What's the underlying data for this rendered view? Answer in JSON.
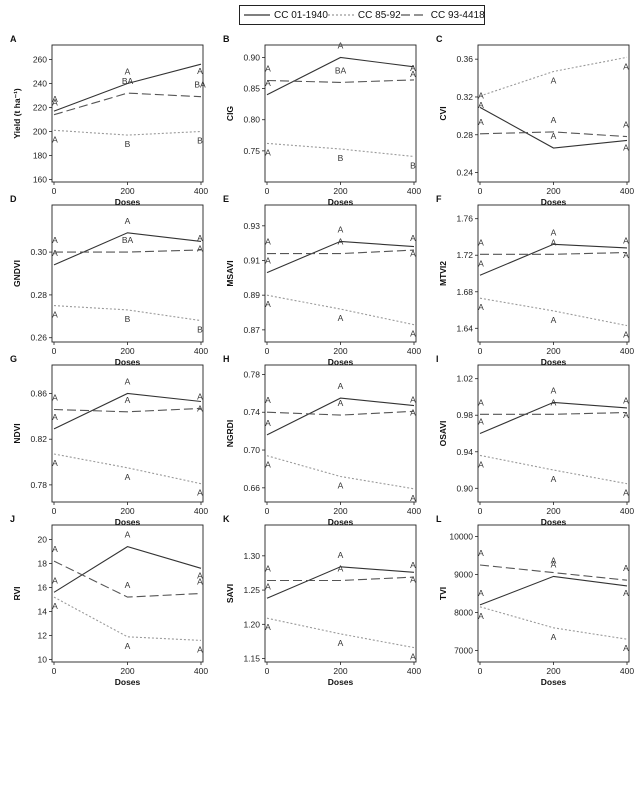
{
  "legend": [
    {
      "name": "CC 01-1940",
      "color": "#333333",
      "dash": "none"
    },
    {
      "name": "CC 85-92",
      "color": "#9a9a9a",
      "dash": "2,2"
    },
    {
      "name": "CC 93-4418",
      "color": "#555555",
      "dash": "9,4"
    }
  ],
  "chart_data": [
    {
      "type": "line",
      "letter": "A",
      "ylabel": "Yield (t ha⁻¹)",
      "xlabel": "Doses",
      "x": [
        0,
        200,
        400
      ],
      "xticks": [
        "0",
        "200",
        "400"
      ],
      "ylim": [
        158,
        272
      ],
      "yticks": [
        "160",
        "180",
        "200",
        "220",
        "240",
        "260"
      ],
      "series": [
        {
          "name": "CC 01-1940",
          "values": [
            217,
            240,
            256
          ],
          "labels": [
            "A",
            "A",
            "A"
          ]
        },
        {
          "name": "CC 85-92",
          "values": [
            201,
            197,
            200
          ],
          "labels": [
            "A",
            "B",
            "B"
          ]
        },
        {
          "name": "CC 93-4418",
          "values": [
            214,
            232,
            229
          ],
          "labels": [
            "A",
            "BA",
            "BA"
          ]
        }
      ]
    },
    {
      "type": "line",
      "letter": "B",
      "ylabel": "CIG",
      "xlabel": "Doses",
      "x": [
        0,
        200,
        400
      ],
      "xticks": [
        "0",
        "200",
        "400"
      ],
      "ylim": [
        0.7,
        0.92
      ],
      "yticks": [
        "0.75",
        "0.80",
        "0.85",
        "0.90"
      ],
      "series": [
        {
          "name": "CC 01-1940",
          "values": [
            0.84,
            0.9,
            0.885
          ],
          "labels": [
            "A",
            "A",
            "A"
          ]
        },
        {
          "name": "CC 85-92",
          "values": [
            0.762,
            0.753,
            0.741
          ],
          "labels": [
            "A",
            "B",
            "B"
          ]
        },
        {
          "name": "CC 93-4418",
          "values": [
            0.863,
            0.86,
            0.864
          ],
          "labels": [
            "A",
            "BA",
            "A"
          ]
        }
      ]
    },
    {
      "type": "line",
      "letter": "C",
      "ylabel": "CVI",
      "xlabel": "Doses",
      "x": [
        0,
        200,
        400
      ],
      "xticks": [
        "0",
        "200",
        "400"
      ],
      "ylim": [
        0.23,
        0.375
      ],
      "yticks": [
        "0.24",
        "0.28",
        "0.32",
        "0.36"
      ],
      "series": [
        {
          "name": "CC 01-1940",
          "values": [
            0.309,
            0.266,
            0.274
          ],
          "labels": [
            "A",
            "A",
            "A"
          ]
        },
        {
          "name": "CC 85-92",
          "values": [
            0.321,
            0.347,
            0.362
          ],
          "labels": [
            "A",
            "A",
            "A"
          ]
        },
        {
          "name": "CC 93-4418",
          "values": [
            0.281,
            0.283,
            0.278
          ],
          "labels": [
            "A",
            "A",
            "A"
          ]
        }
      ]
    },
    {
      "type": "line",
      "letter": "D",
      "ylabel": "GNDVI",
      "xlabel": "Doses",
      "x": [
        0,
        200,
        400
      ],
      "xticks": [
        "0",
        "200",
        "400"
      ],
      "ylim": [
        0.258,
        0.322
      ],
      "yticks": [
        "0.26",
        "0.28",
        "0.30"
      ],
      "series": [
        {
          "name": "CC 01-1940",
          "values": [
            0.294,
            0.309,
            0.305
          ],
          "labels": [
            "A",
            "A",
            "A"
          ]
        },
        {
          "name": "CC 85-92",
          "values": [
            0.275,
            0.273,
            0.268
          ],
          "labels": [
            "A",
            "B",
            "B"
          ]
        },
        {
          "name": "CC 93-4418",
          "values": [
            0.3,
            0.3,
            0.301
          ],
          "labels": [
            "A",
            "BA",
            "A"
          ]
        }
      ]
    },
    {
      "type": "line",
      "letter": "E",
      "ylabel": "MSAVI",
      "xlabel": "Doses",
      "x": [
        0,
        200,
        400
      ],
      "xticks": [
        "0",
        "200",
        "400"
      ],
      "ylim": [
        0.863,
        0.942
      ],
      "yticks": [
        "0.87",
        "0.89",
        "0.91",
        "0.93"
      ],
      "series": [
        {
          "name": "CC 01-1940",
          "values": [
            0.903,
            0.921,
            0.918
          ],
          "labels": [
            "A",
            "A",
            "A"
          ]
        },
        {
          "name": "CC 85-92",
          "values": [
            0.89,
            0.882,
            0.873
          ],
          "labels": [
            "A",
            "A",
            "A"
          ]
        },
        {
          "name": "CC 93-4418",
          "values": [
            0.914,
            0.914,
            0.916
          ],
          "labels": [
            "A",
            "A",
            "A"
          ]
        }
      ]
    },
    {
      "type": "line",
      "letter": "F",
      "ylabel": "MTVI2",
      "xlabel": "Doses",
      "x": [
        0,
        200,
        400
      ],
      "xticks": [
        "0",
        "200",
        "400"
      ],
      "ylim": [
        1.625,
        1.775
      ],
      "yticks": [
        "1.64",
        "1.68",
        "1.72",
        "1.76"
      ],
      "series": [
        {
          "name": "CC 01-1940",
          "values": [
            1.698,
            1.732,
            1.728
          ],
          "labels": [
            "A",
            "A",
            "A"
          ]
        },
        {
          "name": "CC 85-92",
          "values": [
            1.673,
            1.659,
            1.643
          ],
          "labels": [
            "A",
            "A",
            "A"
          ]
        },
        {
          "name": "CC 93-4418",
          "values": [
            1.721,
            1.721,
            1.723
          ],
          "labels": [
            "A",
            "A",
            "A"
          ]
        }
      ]
    },
    {
      "type": "line",
      "letter": "G",
      "ylabel": "NDVI",
      "xlabel": "Doses",
      "x": [
        0,
        200,
        400
      ],
      "xticks": [
        "0",
        "200",
        "400"
      ],
      "ylim": [
        0.765,
        0.885
      ],
      "yticks": [
        "0.78",
        "0.82",
        "0.86"
      ],
      "series": [
        {
          "name": "CC 01-1940",
          "values": [
            0.829,
            0.86,
            0.853
          ],
          "labels": [
            "A",
            "A",
            "A"
          ]
        },
        {
          "name": "CC 85-92",
          "values": [
            0.807,
            0.795,
            0.781
          ],
          "labels": [
            "A",
            "A",
            "A"
          ]
        },
        {
          "name": "CC 93-4418",
          "values": [
            0.846,
            0.844,
            0.847
          ],
          "labels": [
            "A",
            "A",
            "A"
          ]
        }
      ]
    },
    {
      "type": "line",
      "letter": "H",
      "ylabel": "NGRDI",
      "xlabel": "Doses",
      "x": [
        0,
        200,
        400
      ],
      "xticks": [
        "0",
        "200",
        "400"
      ],
      "ylim": [
        0.645,
        0.79
      ],
      "yticks": [
        "0.66",
        "0.70",
        "0.74",
        "0.78"
      ],
      "series": [
        {
          "name": "CC 01-1940",
          "values": [
            0.716,
            0.755,
            0.747
          ],
          "labels": [
            "A",
            "A",
            "A"
          ]
        },
        {
          "name": "CC 85-92",
          "values": [
            0.694,
            0.672,
            0.659
          ],
          "labels": [
            "A",
            "A",
            "A"
          ]
        },
        {
          "name": "CC 93-4418",
          "values": [
            0.74,
            0.737,
            0.741
          ],
          "labels": [
            "A",
            "A",
            "A"
          ]
        }
      ]
    },
    {
      "type": "line",
      "letter": "I",
      "ylabel": "OSAVI",
      "xlabel": "Doses",
      "x": [
        0,
        200,
        400
      ],
      "xticks": [
        "0",
        "200",
        "400"
      ],
      "ylim": [
        0.885,
        1.035
      ],
      "yticks": [
        "0.90",
        "0.94",
        "0.98",
        "1.02"
      ],
      "series": [
        {
          "name": "CC 01-1940",
          "values": [
            0.96,
            0.994,
            0.988
          ],
          "labels": [
            "A",
            "A",
            "A"
          ]
        },
        {
          "name": "CC 85-92",
          "values": [
            0.936,
            0.92,
            0.905
          ],
          "labels": [
            "A",
            "A",
            "A"
          ]
        },
        {
          "name": "CC 93-4418",
          "values": [
            0.981,
            0.981,
            0.983
          ],
          "labels": [
            "A",
            "A",
            "A"
          ]
        }
      ]
    },
    {
      "type": "line",
      "letter": "J",
      "ylabel": "RVI",
      "xlabel": "Doses",
      "x": [
        0,
        200,
        400
      ],
      "xticks": [
        "0",
        "200",
        "400"
      ],
      "ylim": [
        9.8,
        21.2
      ],
      "yticks": [
        "10",
        "12",
        "14",
        "16",
        "18",
        "20"
      ],
      "series": [
        {
          "name": "CC 01-1940",
          "values": [
            15.6,
            19.4,
            17.6
          ],
          "labels": [
            "A",
            "A",
            "A"
          ]
        },
        {
          "name": "CC 85-92",
          "values": [
            15.2,
            11.9,
            11.6
          ],
          "labels": [
            "A",
            "A",
            "A"
          ]
        },
        {
          "name": "CC 93-4418",
          "values": [
            18.2,
            15.2,
            15.5
          ],
          "labels": [
            "A",
            "A",
            "A"
          ]
        }
      ]
    },
    {
      "type": "line",
      "letter": "K",
      "ylabel": "SAVI",
      "xlabel": "Doses",
      "x": [
        0,
        200,
        400
      ],
      "xticks": [
        "0",
        "200",
        "400"
      ],
      "ylim": [
        1.145,
        1.345
      ],
      "yticks": [
        "1.15",
        "1.20",
        "1.25",
        "1.30"
      ],
      "series": [
        {
          "name": "CC 01-1940",
          "values": [
            1.238,
            1.284,
            1.276
          ],
          "labels": [
            "A",
            "A",
            "A"
          ]
        },
        {
          "name": "CC 85-92",
          "values": [
            1.209,
            1.186,
            1.166
          ],
          "labels": [
            "A",
            "A",
            "A"
          ]
        },
        {
          "name": "CC 93-4418",
          "values": [
            1.264,
            1.264,
            1.269
          ],
          "labels": [
            "A",
            "A",
            "A"
          ]
        }
      ]
    },
    {
      "type": "line",
      "letter": "L",
      "ylabel": "TVI",
      "xlabel": "Doses",
      "x": [
        0,
        200,
        400
      ],
      "xticks": [
        "0",
        "200",
        "400"
      ],
      "ylim": [
        6700,
        10300
      ],
      "yticks": [
        "7000",
        "8000",
        "9000",
        "10000"
      ],
      "series": [
        {
          "name": "CC 01-1940",
          "values": [
            8200,
            8950,
            8700
          ],
          "labels": [
            "A",
            "A",
            "A"
          ]
        },
        {
          "name": "CC 85-92",
          "values": [
            8150,
            7600,
            7300
          ],
          "labels": [
            "A",
            "A",
            "A"
          ]
        },
        {
          "name": "CC 93-4418",
          "values": [
            9250,
            9050,
            8850
          ],
          "labels": [
            "A",
            "A",
            "A"
          ]
        }
      ]
    }
  ]
}
